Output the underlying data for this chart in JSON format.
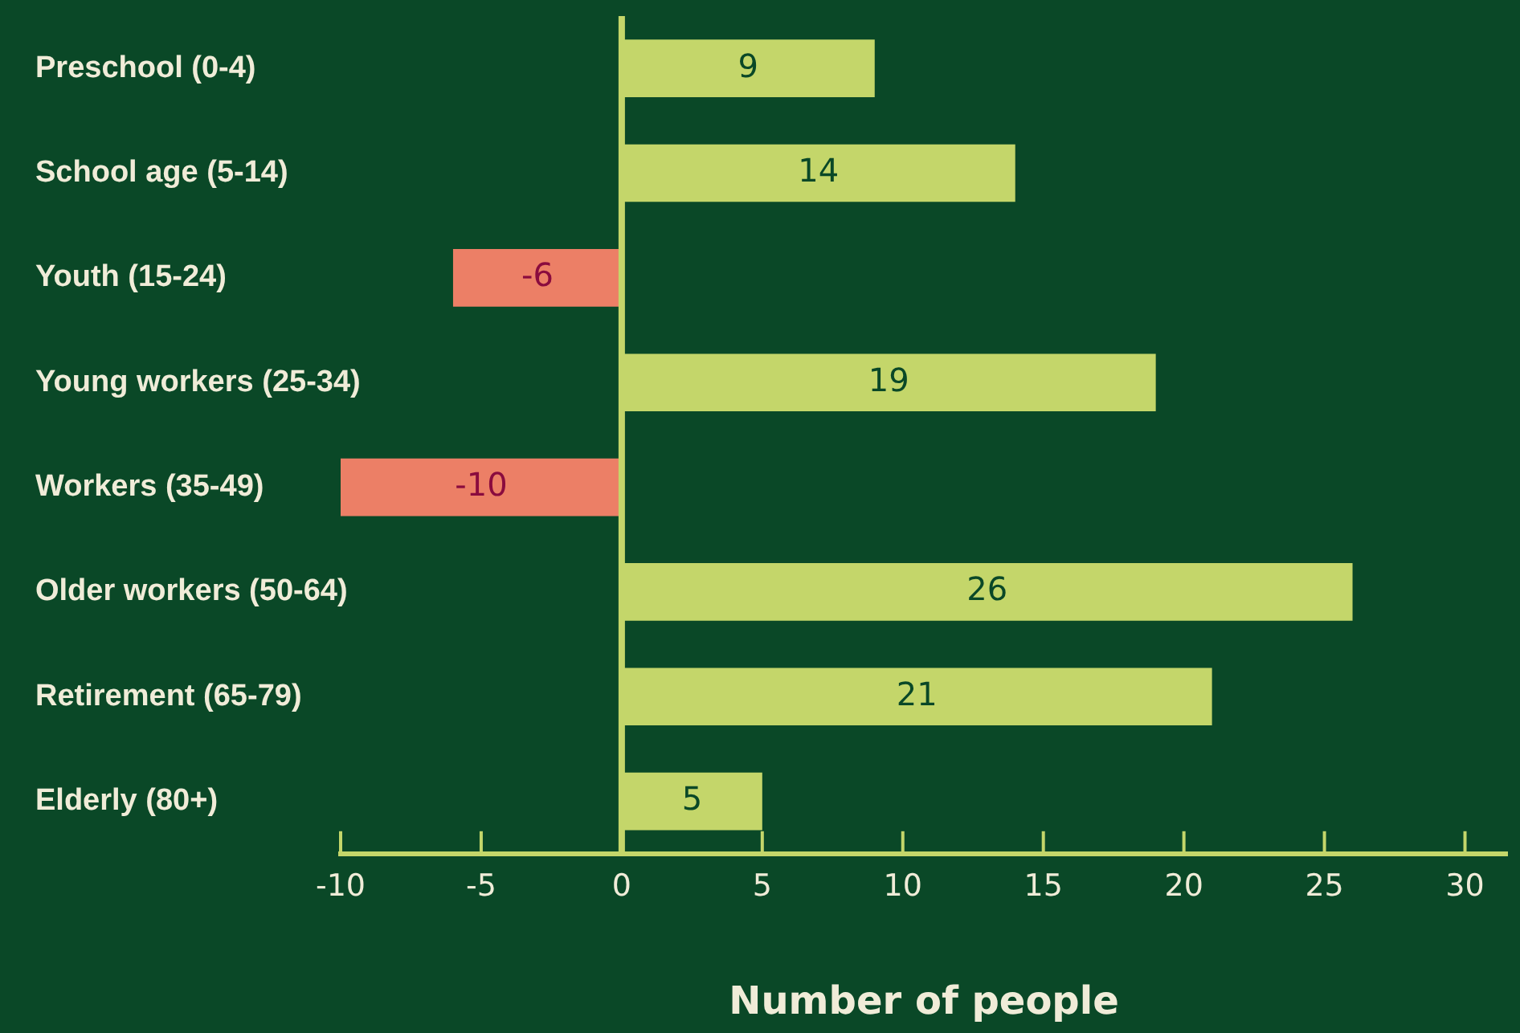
{
  "chart_data": {
    "type": "bar",
    "orientation": "horizontal",
    "xlabel": "Number of people",
    "categories": [
      "Preschool (0-4)",
      "School age (5-14)",
      "Youth (15-24)",
      "Young workers (25-34)",
      "Workers (35-49)",
      "Older workers (50-64)",
      "Retirement (65-79)",
      "Elderly (80+)"
    ],
    "values": [
      9,
      14,
      -6,
      19,
      -10,
      26,
      21,
      5
    ],
    "data_labels": true,
    "colors": [
      "#c4d66a",
      "#c4d66a",
      "#ec7f66",
      "#c4d66a",
      "#ec7f66",
      "#c4d66a",
      "#c4d66a",
      "#c4d66a"
    ],
    "xlim": [
      -10,
      31.5
    ],
    "xticks": [
      -10,
      -5,
      0,
      5,
      10,
      15,
      20,
      25,
      30
    ],
    "ref_lines": [
      {
        "axis": "x",
        "value": 0,
        "color": "#c4d66a"
      }
    ],
    "grid": false,
    "legend": false
  }
}
